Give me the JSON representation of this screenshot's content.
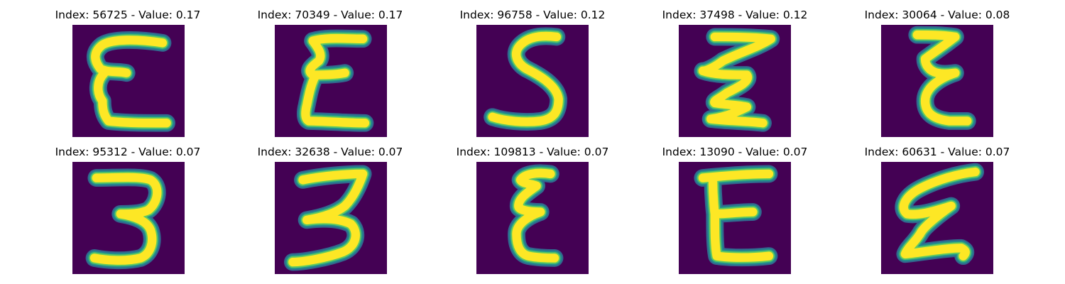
{
  "figure": {
    "colors": {
      "background": "#440154",
      "edge_dark": "#31688e",
      "edge_mid": "#21918c",
      "edge_light": "#5ec962",
      "stroke": "#fde725"
    },
    "panels": [
      {
        "title": "Index: 56725 - Value: 0.17",
        "glyph": "E",
        "index": 56725,
        "value": 0.17
      },
      {
        "title": "Index: 70349 - Value: 0.17",
        "glyph": "Ɛ",
        "index": 70349,
        "value": 0.17
      },
      {
        "title": "Index: 96758 - Value: 0.12",
        "glyph": "S",
        "index": 96758,
        "value": 0.12
      },
      {
        "title": "Index: 37498 - Value: 0.12",
        "glyph": "Ʒ",
        "index": 37498,
        "value": 0.12
      },
      {
        "title": "Index: 30064 - Value: 0.08",
        "glyph": "Ɛ",
        "index": 30064,
        "value": 0.08
      },
      {
        "title": "Index: 95312 - Value: 0.07",
        "glyph": "3",
        "index": 95312,
        "value": 0.07
      },
      {
        "title": "Index: 32638 - Value: 0.07",
        "glyph": "3",
        "index": 32638,
        "value": 0.07
      },
      {
        "title": "Index: 109813 - Value: 0.07",
        "glyph": "Ɛ",
        "index": 109813,
        "value": 0.07
      },
      {
        "title": "Index: 13090 - Value: 0.07",
        "glyph": "E",
        "index": 13090,
        "value": 0.07
      },
      {
        "title": "Index: 60631 - Value: 0.07",
        "glyph": "Ɛ",
        "index": 60631,
        "value": 0.07
      }
    ]
  }
}
